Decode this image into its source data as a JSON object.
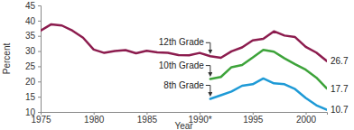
{
  "chart_data": {
    "type": "line",
    "x_label": "Year",
    "y_label": "Percent",
    "x": [
      1975,
      1976,
      1977,
      1978,
      1979,
      1980,
      1981,
      1982,
      1983,
      1984,
      1985,
      1986,
      1987,
      1988,
      1989,
      1990,
      1991,
      1992,
      1993,
      1994,
      1995,
      1996,
      1997,
      1998,
      1999,
      2000,
      2001,
      2002
    ],
    "series": [
      {
        "name": "12th Grade",
        "color": "#8c1c4e",
        "values": [
          36.7,
          38.8,
          38.4,
          36.7,
          34.4,
          30.5,
          29.4,
          30.0,
          30.3,
          29.3,
          30.1,
          29.6,
          29.4,
          28.7,
          28.6,
          29.4,
          28.3,
          27.8,
          29.9,
          31.2,
          33.5,
          34.0,
          36.5,
          35.1,
          34.6,
          31.4,
          29.5,
          26.7
        ]
      },
      {
        "name": "10th Grade",
        "color": "#3da33a",
        "values": [
          null,
          null,
          null,
          null,
          null,
          null,
          null,
          null,
          null,
          null,
          null,
          null,
          null,
          null,
          null,
          null,
          20.8,
          21.5,
          24.7,
          25.4,
          27.9,
          30.4,
          29.8,
          27.6,
          25.7,
          23.9,
          21.3,
          17.7
        ]
      },
      {
        "name": "8th Grade",
        "color": "#1e9ad6",
        "values": [
          null,
          null,
          null,
          null,
          null,
          null,
          null,
          null,
          null,
          null,
          null,
          null,
          null,
          null,
          null,
          null,
          14.3,
          15.5,
          16.7,
          18.6,
          19.1,
          21.0,
          19.4,
          19.1,
          17.5,
          14.6,
          12.2,
          10.7
        ]
      }
    ],
    "xlim": [
      1975,
      2002
    ],
    "xticks": [
      1975,
      1980,
      1985,
      {
        "value": 1990,
        "label": "1990*"
      },
      1995,
      2000
    ],
    "ylim": [
      10,
      45
    ],
    "yticks": [
      10,
      15,
      20,
      25,
      30,
      35,
      40,
      45
    ],
    "grid": false
  }
}
